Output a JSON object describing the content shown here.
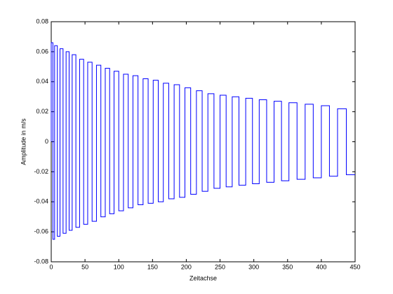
{
  "chart_data": {
    "type": "line",
    "xlabel": "Zeitachse",
    "ylabel": "Amplitude in m/s",
    "xlim": [
      0,
      450
    ],
    "ylim": [
      -0.08,
      0.08
    ],
    "xticks": [
      0,
      50,
      100,
      150,
      200,
      250,
      300,
      350,
      400,
      450
    ],
    "yticks": [
      -0.08,
      -0.06,
      -0.04,
      -0.02,
      0,
      0.02,
      0.04,
      0.06,
      0.08
    ],
    "grid": false,
    "series": [
      {
        "color": "#0000ff",
        "x": [
          0,
          0,
          2.5,
          2.5,
          5,
          5,
          9,
          9,
          13,
          13,
          17.5,
          17.5,
          22,
          22,
          26.5,
          26.5,
          31,
          31,
          36.5,
          36.5,
          42,
          42,
          48,
          48,
          54,
          54,
          60.5,
          60.5,
          67,
          67,
          73.5,
          73.5,
          80,
          80,
          86.5,
          86.5,
          93,
          93,
          100,
          100,
          107,
          107,
          114,
          114,
          121,
          121,
          128.5,
          128.5,
          136,
          136,
          143.5,
          143.5,
          151,
          151,
          158.5,
          158.5,
          166,
          166,
          174,
          174,
          182,
          182,
          190,
          190,
          198,
          198,
          206.5,
          206.5,
          215,
          215,
          223.5,
          223.5,
          232,
          232,
          241,
          241,
          250,
          250,
          259,
          259,
          268,
          268,
          278,
          278,
          288,
          288,
          298,
          298,
          308,
          308,
          319,
          319,
          330,
          330,
          341,
          341,
          352,
          352,
          364,
          364,
          376,
          376,
          388,
          388,
          400,
          400,
          412,
          412,
          424,
          424,
          437,
          437,
          450
        ],
        "values": [
          0,
          0.066,
          0.066,
          -0.065,
          -0.065,
          0.064,
          0.064,
          -0.063,
          -0.063,
          0.062,
          0.062,
          -0.061,
          -0.061,
          0.06,
          0.06,
          -0.059,
          -0.059,
          0.058,
          0.058,
          -0.057,
          -0.057,
          0.055,
          0.055,
          -0.055,
          -0.055,
          0.053,
          0.053,
          -0.053,
          -0.053,
          0.051,
          0.051,
          -0.05,
          -0.05,
          0.049,
          0.049,
          -0.048,
          -0.048,
          0.047,
          0.047,
          -0.046,
          -0.046,
          0.045,
          0.045,
          -0.044,
          -0.044,
          0.044,
          0.044,
          -0.042,
          -0.042,
          0.042,
          0.042,
          -0.041,
          -0.041,
          0.041,
          0.041,
          -0.04,
          -0.04,
          0.039,
          0.039,
          -0.038,
          -0.038,
          0.038,
          0.038,
          -0.037,
          -0.037,
          0.036,
          0.036,
          -0.035,
          -0.035,
          0.034,
          0.034,
          -0.033,
          -0.033,
          0.032,
          0.032,
          -0.031,
          -0.031,
          0.031,
          0.031,
          -0.03,
          -0.03,
          0.03,
          0.03,
          -0.029,
          -0.029,
          0.029,
          0.029,
          -0.028,
          -0.028,
          0.028,
          0.028,
          -0.027,
          -0.027,
          0.027,
          0.027,
          -0.026,
          -0.026,
          0.026,
          0.026,
          -0.025,
          -0.025,
          0.025,
          0.025,
          -0.024,
          -0.024,
          0.024,
          0.024,
          -0.023,
          -0.023,
          0.022,
          0.022,
          -0.022,
          -0.022
        ]
      }
    ]
  }
}
